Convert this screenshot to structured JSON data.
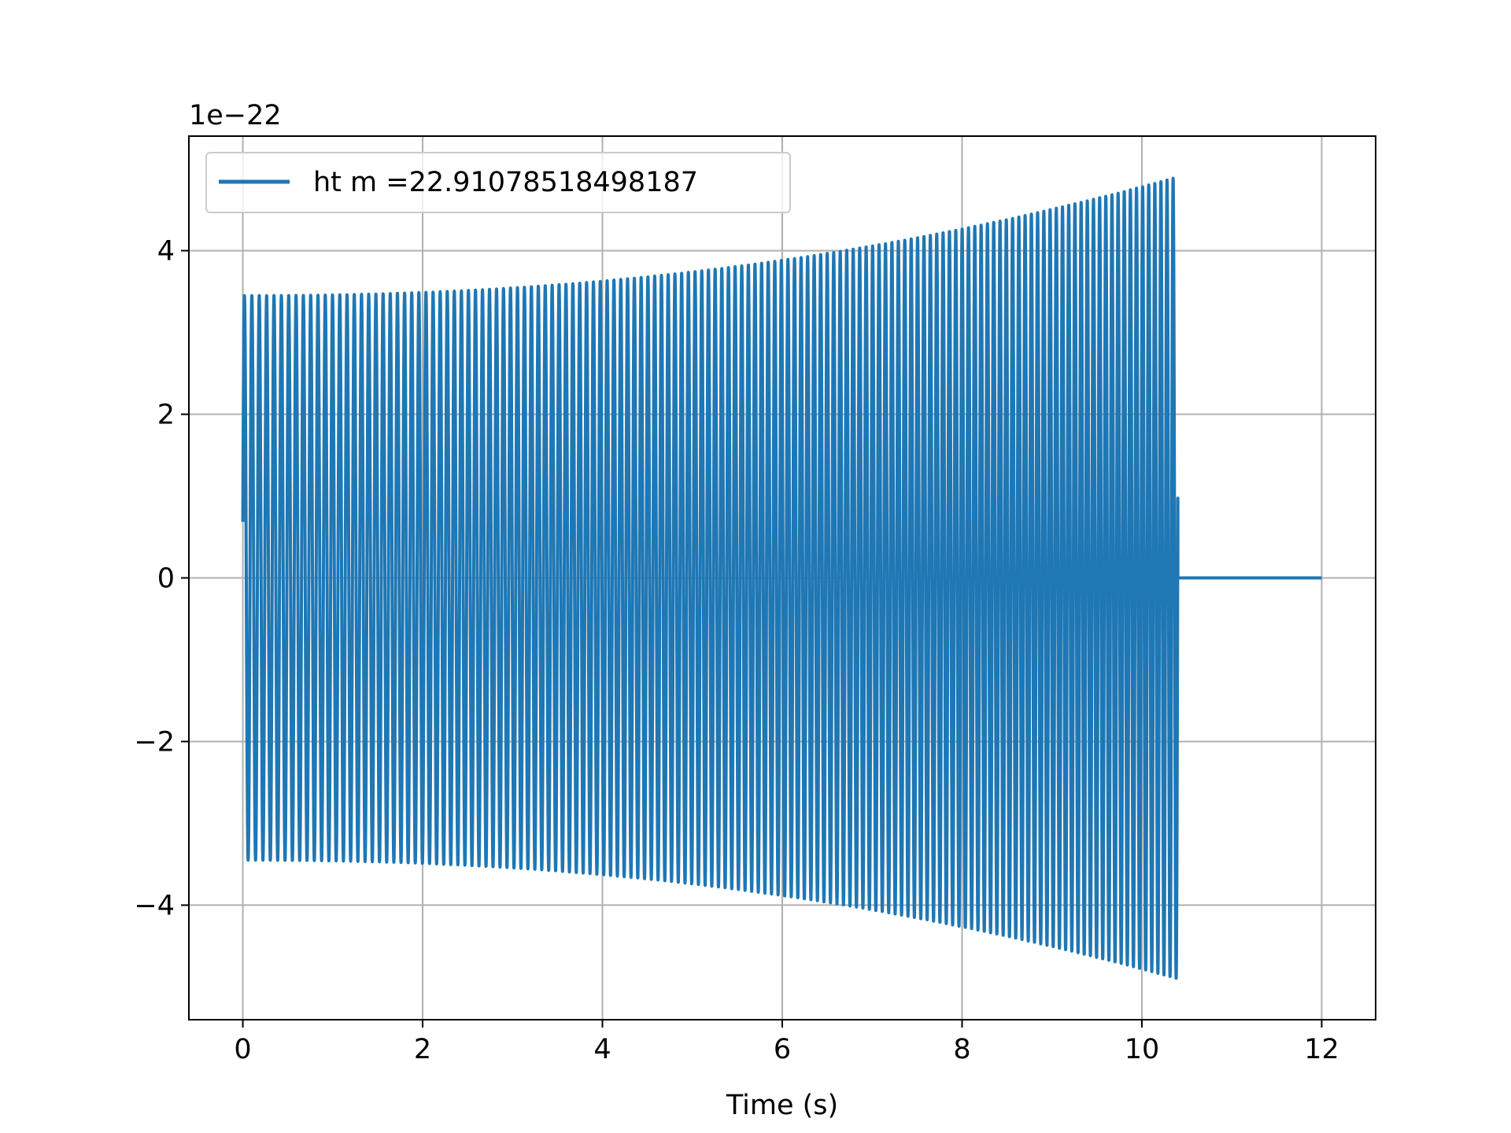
{
  "chart_data": {
    "type": "line",
    "title": "",
    "xlabel": "Time (s)",
    "ylabel": "",
    "y_offset_label": "1e−22",
    "xlim": [
      -0.6,
      12.6
    ],
    "ylim": [
      -5.4,
      5.4
    ],
    "x_ticks": [
      0,
      2,
      4,
      6,
      8,
      10,
      12
    ],
    "x_tick_labels": [
      "0",
      "2",
      "4",
      "6",
      "8",
      "10",
      "12"
    ],
    "y_ticks": [
      -4,
      -2,
      0,
      2,
      4
    ],
    "y_tick_labels": [
      "−4",
      "−2",
      "0",
      "2",
      "4"
    ],
    "grid": true,
    "legend_position": "top-left",
    "series": [
      {
        "name": "ht m =22.91078518498187",
        "color": "#1f77b4",
        "description_values": {
          "start_amplitude": 3.45,
          "end_amplitude": 4.9,
          "signal_end_time": 10.4,
          "flat_until": 12.0,
          "oscillation_count": 140
        }
      }
    ]
  }
}
